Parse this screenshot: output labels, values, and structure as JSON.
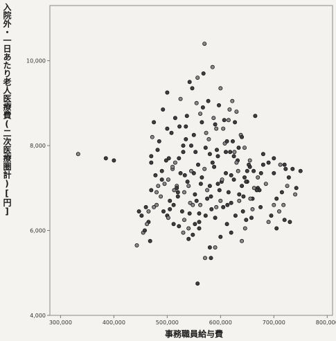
{
  "chart_data": {
    "type": "scatter",
    "title": "",
    "xlabel": "事務職員給与費",
    "ylabel": "入院外・一日あたり老人医療費(二次医療圏計)[円]",
    "xlim": [
      280000,
      810000
    ],
    "ylim": [
      4000,
      11300
    ],
    "x_ticks": [
      300000,
      400000,
      500000,
      600000,
      700000,
      800000
    ],
    "x_tick_labels": [
      "300,000",
      "400,000",
      "500,000",
      "600,000",
      "700,000",
      "800,000"
    ],
    "y_ticks": [
      4000,
      6000,
      8000,
      10000
    ],
    "y_tick_labels": [
      "4,000",
      "6,000",
      "8,000",
      "10,000"
    ],
    "grid": false,
    "legend": "none",
    "colors": {
      "marker_fill": "#3f3f3f",
      "marker_fill_light": "#8a8a8a",
      "marker_edge": "#151515",
      "plot_bg": "#f4f2ee",
      "axis": "#777777"
    },
    "series": [
      {
        "x": [
          333000,
          385000,
          400000,
          443000,
          452000,
          460000,
          465000,
          468000,
          470000,
          472000,
          475000,
          478000,
          480000,
          482000,
          485000,
          488000,
          490000,
          492000,
          495000,
          498000,
          500000,
          502000,
          505000,
          508000,
          510000,
          512000,
          515000,
          518000,
          520000,
          522000,
          525000,
          528000,
          530000,
          532000,
          535000,
          538000,
          540000,
          542000,
          545000,
          548000,
          550000,
          552000,
          555000,
          558000,
          560000,
          562000,
          565000,
          568000,
          570000,
          572000,
          575000,
          578000,
          580000,
          582000,
          585000,
          588000,
          590000,
          592000,
          595000,
          598000,
          600000,
          602000,
          605000,
          608000,
          610000,
          612000,
          615000,
          618000,
          620000,
          622000,
          625000,
          628000,
          630000,
          632000,
          635000,
          638000,
          640000,
          642000,
          645000,
          648000,
          650000,
          655000,
          660000,
          665000,
          670000,
          675000,
          680000,
          690000,
          700000,
          705000,
          710000,
          715000,
          720000,
          725000,
          730000,
          735000,
          740000,
          750000,
          470000,
          480000,
          490000,
          500000,
          510000,
          520000,
          530000,
          540000,
          550000,
          560000,
          570000,
          580000,
          590000,
          600000,
          610000,
          620000,
          630000,
          640000,
          650000,
          660000,
          670000,
          680000,
          700000,
          720000,
          505000,
          515000,
          525000,
          535000,
          545000,
          555000,
          565000,
          575000,
          585000,
          595000,
          605000,
          615000,
          625000,
          635000,
          645000,
          655000,
          483000,
          493000,
          503000,
          513000,
          523000,
          533000,
          543000,
          553000,
          563000,
          573000,
          583000,
          593000,
          603000,
          613000,
          623000,
          633000,
          643000,
          653000,
          663000,
          673000,
          557000,
          571000,
          540000,
          548000,
          590000,
          600000,
          620000,
          640000,
          560000,
          580000,
          475000,
          470000,
          465000,
          455000,
          447000,
          458000,
          462000,
          500000,
          518000,
          530000,
          690000,
          700000,
          712000,
          722000,
          728000,
          718000,
          705000,
          695000,
          685000,
          742000,
          612000,
          626000,
          634000,
          648000,
          656000,
          668000,
          676000,
          646000,
          658000,
          662000,
          502000,
          512000,
          522000,
          532000,
          542000,
          552000,
          562000,
          572000,
          582000,
          592000,
          537000,
          547000,
          557000,
          567000,
          577000,
          587000,
          597000,
          607000,
          617000,
          627000
        ],
        "y": [
          7800,
          7700,
          7650,
          5650,
          6350,
          6550,
          6450,
          5750,
          6950,
          8200,
          8550,
          7300,
          6600,
          7900,
          8100,
          6800,
          7400,
          8850,
          7100,
          7650,
          9250,
          7200,
          6700,
          8300,
          7450,
          6150,
          8650,
          7050,
          6900,
          7700,
          9100,
          6450,
          7850,
          6250,
          8450,
          7150,
          6050,
          9500,
          8000,
          6600,
          7350,
          6850,
          9000,
          7550,
          6400,
          8750,
          7250,
          9700,
          10400,
          7950,
          6750,
          8150,
          7050,
          5350,
          9850,
          7500,
          6300,
          8400,
          7750,
          6950,
          9350,
          7150,
          6550,
          8050,
          7350,
          6150,
          8600,
          7850,
          6650,
          9050,
          7200,
          6350,
          8800,
          7650,
          6850,
          8250,
          7050,
          6450,
          7950,
          6250,
          7400,
          7650,
          6750,
          8700,
          7250,
          6550,
          7550,
          6200,
          7350,
          6750,
          6450,
          6900,
          6250,
          7050,
          6200,
          7450,
          6850,
          7400,
          7600,
          6900,
          7200,
          8400,
          7500,
          6800,
          8000,
          7050,
          8250,
          6200,
          7450,
          7800,
          8500,
          6700,
          7850,
          7300,
          7600,
          8200,
          7150,
          6500,
          7000,
          7800,
          6600,
          7550,
          6500,
          7600,
          7350,
          8150,
          7400,
          6700,
          8550,
          6950,
          7600,
          7100,
          8400,
          6900,
          7750,
          6700,
          7250,
          7500,
          7050,
          6450,
          7700,
          6950,
          8450,
          7300,
          6650,
          7850,
          7100,
          8300,
          6500,
          7900,
          7200,
          6600,
          8100,
          7400,
          6800,
          7550,
          7000,
          6950,
          4750,
          5350,
          5800,
          5900,
          5600,
          5850,
          5950,
          5750,
          6050,
          5600,
          6550,
          7750,
          6200,
          5950,
          6450,
          6000,
          6150,
          6350,
          7000,
          5950,
          7600,
          7700,
          7550,
          7450,
          7250,
          6600,
          6050,
          6350,
          7100,
          7000,
          8100,
          7850,
          7950,
          7150,
          6750,
          6950,
          7350,
          6050,
          6300,
          7400,
          6300,
          6600,
          6100,
          6900,
          6400,
          6150,
          6600,
          6350,
          6800,
          6550,
          8700,
          9350,
          9600,
          8900,
          9050,
          8650,
          8950,
          8600,
          8850,
          8550
        ]
      }
    ]
  }
}
